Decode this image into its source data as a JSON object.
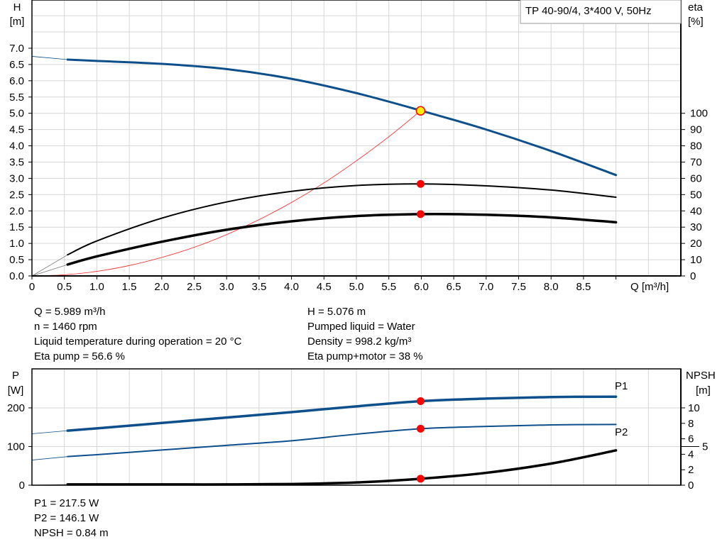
{
  "colors": {
    "head": "#0d4f8b",
    "power": "#0d4f8b",
    "efficiency": "#000000",
    "system": "#ff2020",
    "duty_point": "#ff0000",
    "duty_point_fill": "#ffee00",
    "grid": "#d6d6d6"
  },
  "chart_data": [
    {
      "type": "line",
      "title": "TP 40-90/4, 3*400 V, 50Hz",
      "xlabel": "Q [m³/h]",
      "ylabel": "H",
      "ylabel_unit": "[m]",
      "y2label": "eta",
      "y2label_unit": "[%]",
      "xlim": [
        0,
        10
      ],
      "ylim": [
        0,
        8.5
      ],
      "y2lim": [
        0,
        170
      ],
      "grid": true,
      "xticks": [
        "0",
        "0.5",
        "1.0",
        "1.5",
        "2.0",
        "2.5",
        "3.0",
        "3.5",
        "4.0",
        "4.5",
        "5.0",
        "5.5",
        "6.0",
        "6.5",
        "7.0",
        "7.5",
        "8.0",
        "8.5"
      ],
      "xtick_values": [
        0,
        0.5,
        1,
        1.5,
        2,
        2.5,
        3,
        3.5,
        4,
        4.5,
        5,
        5.5,
        6,
        6.5,
        7,
        7.5,
        8,
        8.5
      ],
      "yticks": [
        "0.0",
        "0.5",
        "1.0",
        "1.5",
        "2.0",
        "2.5",
        "3.0",
        "3.5",
        "4.0",
        "4.5",
        "5.0",
        "5.5",
        "6.0",
        "6.5",
        "7.0"
      ],
      "y2ticks": [
        "0",
        "10",
        "20",
        "30",
        "40",
        "50",
        "60",
        "70",
        "80",
        "90",
        "100"
      ],
      "series": [
        {
          "key": "head",
          "axis": "H",
          "x": [
            0,
            0.55,
            1,
            2,
            3,
            4,
            5,
            6,
            7,
            8,
            9
          ],
          "y": [
            6.75,
            6.65,
            6.61,
            6.52,
            6.36,
            6.06,
            5.62,
            5.08,
            4.5,
            3.84,
            3.1
          ]
        },
        {
          "key": "eta_pump",
          "axis": "eta",
          "x": [
            0,
            0.55,
            1,
            2,
            3,
            4,
            5,
            6,
            7,
            8,
            9
          ],
          "y": [
            0,
            13,
            21.5,
            35.5,
            45.5,
            52,
            55.6,
            56.6,
            55.4,
            52.8,
            48.4
          ]
        },
        {
          "key": "eta_pump_motor",
          "axis": "eta",
          "x": [
            0,
            0.55,
            1,
            2,
            3,
            4,
            5,
            6,
            7,
            8,
            9
          ],
          "y": [
            0,
            7,
            12,
            21,
            28.4,
            33.6,
            36.8,
            38,
            37.6,
            36,
            33
          ]
        },
        {
          "key": "system_curve",
          "axis": "H",
          "x": [
            0,
            0.5,
            1,
            1.5,
            2,
            2.5,
            3,
            3.5,
            4,
            4.5,
            5,
            5.5,
            5.989
          ],
          "y": [
            0,
            0.035,
            0.14,
            0.32,
            0.57,
            0.88,
            1.27,
            1.73,
            2.26,
            2.86,
            3.54,
            4.28,
            5.076
          ]
        }
      ],
      "duty_points": [
        {
          "series": "head",
          "x": 5.989,
          "y": 5.076
        },
        {
          "series": "eta_pump",
          "x": 5.989,
          "y": 56.6
        },
        {
          "series": "eta_pump_motor",
          "x": 5.989,
          "y": 38
        }
      ]
    },
    {
      "type": "line",
      "ylabel": "P",
      "ylabel_unit": "[W]",
      "y2label": "NPSH",
      "y2label_unit": "[m]",
      "xlim": [
        0,
        10
      ],
      "ylim": [
        0,
        300
      ],
      "y2lim": [
        0,
        15
      ],
      "grid": true,
      "yticks": [
        "0",
        "100",
        "200"
      ],
      "y2ticks": [
        "0",
        "2",
        "4",
        "5",
        "6",
        "8",
        "10"
      ],
      "y2tick_values": [
        0,
        2,
        4,
        5,
        6,
        8,
        10
      ],
      "series": [
        {
          "key": "P1",
          "name": "P1",
          "axis": "P",
          "x": [
            0,
            0.55,
            1,
            2,
            3,
            4,
            5,
            6,
            7,
            8,
            9
          ],
          "y": [
            133,
            141,
            147,
            161,
            175,
            189,
            204,
            217.5,
            224,
            228,
            229
          ]
        },
        {
          "key": "P2",
          "name": "P2",
          "axis": "P",
          "x": [
            0,
            0.55,
            1,
            2,
            3,
            4,
            5,
            6,
            7,
            8,
            9
          ],
          "y": [
            65,
            74,
            79,
            91,
            103,
            115,
            132,
            146.1,
            152,
            156,
            157
          ]
        },
        {
          "key": "NPSH",
          "axis": "NPSH",
          "x": [
            0,
            0.55,
            1,
            2,
            3,
            4,
            5,
            6,
            7,
            8,
            9
          ],
          "y": [
            0,
            0.1,
            0.1,
            0.1,
            0.1,
            0.15,
            0.35,
            0.84,
            1.6,
            2.8,
            4.5
          ]
        }
      ],
      "duty_points": [
        {
          "series": "P1",
          "x": 5.989,
          "y": 217.5
        },
        {
          "series": "P2",
          "x": 5.989,
          "y": 146.1
        },
        {
          "series": "NPSH",
          "x": 5.989,
          "y": 0.84
        }
      ]
    }
  ],
  "info_top_left": [
    "Q = 5.989 m³/h",
    "n = 1460 rpm",
    "Liquid temperature during operation = 20 °C",
    "Eta pump = 56.6 %"
  ],
  "info_top_right": [
    "H = 5.076 m",
    "Pumped liquid = Water",
    "Density = 998.2 kg/m³",
    "Eta pump+motor = 38 %"
  ],
  "info_bottom": [
    "P1 = 217.5 W",
    "P2 = 146.1 W",
    "NPSH = 0.84 m"
  ]
}
